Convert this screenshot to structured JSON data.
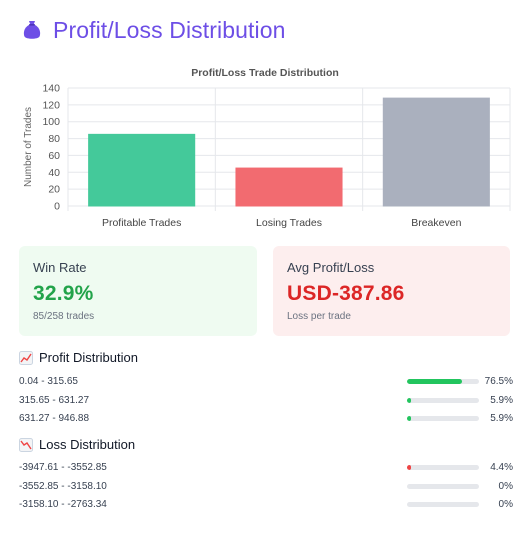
{
  "header": {
    "title": "Profit/Loss Distribution",
    "icon": "money-bag-icon"
  },
  "chart_data": {
    "type": "bar",
    "title": "Profit/Loss Trade Distribution",
    "ylabel": "Number of Trades",
    "xlabel": "",
    "categories": [
      "Profitable Trades",
      "Losing Trades",
      "Breakeven"
    ],
    "values": [
      85,
      45,
      128
    ],
    "colors": [
      "#44c99a",
      "#f26b70",
      "#aab0be"
    ],
    "ylim": [
      0,
      140
    ],
    "yticks": [
      0,
      20,
      40,
      60,
      80,
      100,
      120,
      140
    ],
    "grid": true
  },
  "cards": {
    "win": {
      "label": "Win Rate",
      "value": "32.9%",
      "sub": "85/258 trades"
    },
    "loss": {
      "label": "Avg Profit/Loss",
      "value": "USD-387.86",
      "sub": "Loss per trade"
    }
  },
  "profit_section": {
    "title": "Profit Distribution",
    "icon": "chart-increasing-icon",
    "rows": [
      {
        "range": "0.04 - 315.65",
        "pct": "76.5%",
        "level": 0.765
      },
      {
        "range": "315.65 - 631.27",
        "pct": "5.9%",
        "level": 0.059
      },
      {
        "range": "631.27 - 946.88",
        "pct": "5.9%",
        "level": 0.059
      }
    ]
  },
  "loss_section": {
    "title": "Loss Distribution",
    "icon": "chart-decreasing-icon",
    "rows": [
      {
        "range": "-3947.61 - -3552.85",
        "pct": "4.4%",
        "level": 0.044
      },
      {
        "range": "-3552.85 - -3158.10",
        "pct": "0%",
        "level": 0
      },
      {
        "range": "-3158.10 - -2763.34",
        "pct": "0%",
        "level": 0
      }
    ]
  }
}
